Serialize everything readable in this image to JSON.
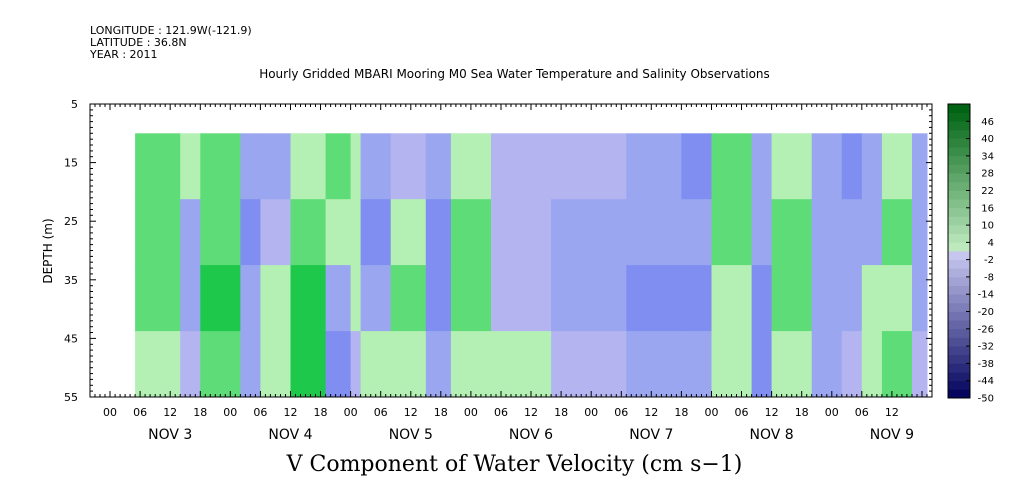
{
  "header": {
    "longitude": "LONGITUDE : 121.9W(-121.9)",
    "latitude": "LATITUDE : 36.8N",
    "year": "YEAR : 2011"
  },
  "chart_data": {
    "type": "heatmap",
    "title": "Hourly Gridded MBARI Mooring M0 Sea Water Temperature and Salinity Observations",
    "xlabel": "V Component of Water Velocity (cm s−1)",
    "ylabel": "DEPTH (m)",
    "ylim": [
      55,
      5
    ],
    "y_ticks": [
      "5",
      "15",
      "25",
      "35",
      "45",
      "55"
    ],
    "x_hour_ticks": [
      "00",
      "06",
      "12",
      "18",
      "00",
      "06",
      "12",
      "18",
      "00",
      "06",
      "12",
      "18",
      "00",
      "06",
      "12",
      "18",
      "00",
      "06",
      "12",
      "18",
      "00",
      "06",
      "12",
      "18",
      "00",
      "06",
      "12"
    ],
    "x_day_labels": [
      "NOV  3",
      "NOV  4",
      "NOV  5",
      "NOV  6",
      "NOV  7",
      "NOV  8",
      "NOV  9"
    ],
    "x_range_hours": [
      -4,
      164
    ],
    "data_start_hour": 5,
    "data_depth_range": [
      10,
      55
    ],
    "colorbar": {
      "ticks": [
        "46",
        "40",
        "34",
        "28",
        "22",
        "16",
        "10",
        "4",
        "-2",
        "-8",
        "-14",
        "-20",
        "-26",
        "-32",
        "-38",
        "-44",
        "-50"
      ],
      "range": [
        -50,
        52
      ]
    },
    "colors": {
      "strong_pos": "#1ec84a",
      "mid_pos": "#5ddc78",
      "weak_pos": "#b4f0b4",
      "weak_neg": "#b4b4f0",
      "mid_neg": "#9aa6f0",
      "strong_neg": "#7f8ef0",
      "background": "#ffffff"
    },
    "bands": [
      {
        "from": 5,
        "to": 14,
        "values": [
          8,
          14,
          12,
          6
        ]
      },
      {
        "from": 14,
        "to": 18,
        "values": [
          2,
          -8,
          -4,
          0
        ]
      },
      {
        "from": 18,
        "to": 26,
        "values": [
          10,
          16,
          22,
          18
        ]
      },
      {
        "from": 26,
        "to": 30,
        "values": [
          -6,
          -10,
          -8,
          -4
        ]
      },
      {
        "from": 30,
        "to": 36,
        "values": [
          -8,
          -2,
          4,
          6
        ]
      },
      {
        "from": 36,
        "to": 43,
        "values": [
          6,
          14,
          22,
          28
        ]
      },
      {
        "from": 43,
        "to": 48,
        "values": [
          10,
          4,
          -4,
          -10
        ]
      },
      {
        "from": 48,
        "to": 50,
        "values": [
          2,
          6,
          4,
          0
        ]
      },
      {
        "from": 50,
        "to": 56,
        "values": [
          -6,
          -10,
          -4,
          2
        ]
      },
      {
        "from": 56,
        "to": 63,
        "values": [
          -2,
          4,
          8,
          6
        ]
      },
      {
        "from": 63,
        "to": 68,
        "values": [
          -8,
          -14,
          -12,
          -6
        ]
      },
      {
        "from": 68,
        "to": 76,
        "values": [
          4,
          10,
          8,
          2
        ]
      },
      {
        "from": 76,
        "to": 88,
        "values": [
          -2,
          0,
          -2,
          2
        ]
      },
      {
        "from": 88,
        "to": 103,
        "values": [
          -2,
          -6,
          -4,
          0
        ]
      },
      {
        "from": 103,
        "to": 114,
        "values": [
          -4,
          -8,
          -10,
          -6
        ]
      },
      {
        "from": 114,
        "to": 120,
        "values": [
          -12,
          -8,
          -10,
          -4
        ]
      },
      {
        "from": 120,
        "to": 128,
        "values": [
          12,
          8,
          6,
          4
        ]
      },
      {
        "from": 128,
        "to": 132,
        "values": [
          -6,
          -8,
          -12,
          -14
        ]
      },
      {
        "from": 132,
        "to": 140,
        "values": [
          6,
          12,
          8,
          2
        ]
      },
      {
        "from": 140,
        "to": 146,
        "values": [
          -4,
          -8,
          -4,
          -6
        ]
      },
      {
        "from": 146,
        "to": 150,
        "values": [
          -14,
          -6,
          -4,
          -2
        ]
      },
      {
        "from": 150,
        "to": 154,
        "values": [
          -8,
          -4,
          2,
          4
        ]
      },
      {
        "from": 154,
        "to": 160,
        "values": [
          4,
          10,
          6,
          8
        ]
      },
      {
        "from": 160,
        "to": 163,
        "values": [
          -6,
          -8,
          -4,
          -2
        ]
      }
    ]
  }
}
